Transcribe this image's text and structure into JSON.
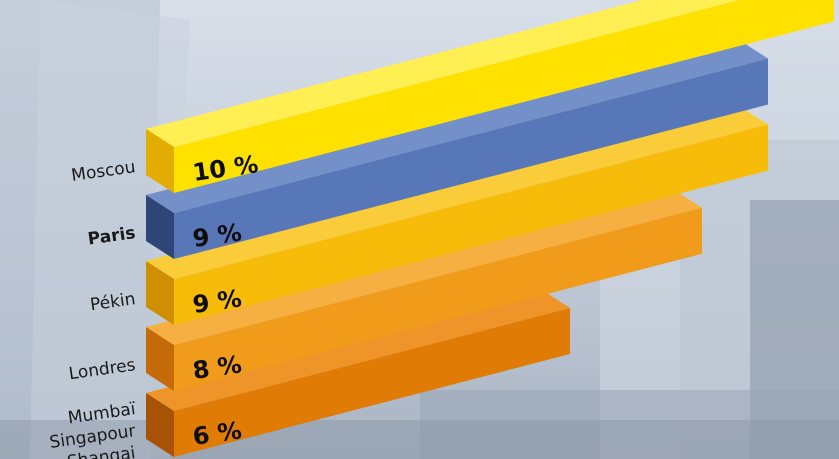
{
  "chart_data": {
    "type": "bar",
    "orientation": "horizontal",
    "categories": [
      "Moscou",
      "Paris",
      "Pékin",
      "Londres",
      "Mumbaï\nSingapour\nShangai"
    ],
    "category_lines": [
      [
        "Moscou"
      ],
      [
        "Paris"
      ],
      [
        "Pékin"
      ],
      [
        "Londres"
      ],
      [
        "Mumbaï",
        "Singapour",
        "Shangai"
      ]
    ],
    "values": [
      10,
      9,
      9,
      8,
      6
    ],
    "value_labels": [
      "10 %",
      "9 %",
      "9 %",
      "8 %",
      "6 %"
    ],
    "bar_colors": [
      {
        "front": "#ffe100",
        "top": "#ffef52",
        "side": "#e2ad00"
      },
      {
        "front": "#5877b8",
        "top": "#7390c9",
        "side": "#2e4577"
      },
      {
        "front": "#f7bc0a",
        "top": "#fbcc3a",
        "side": "#cf8f00"
      },
      {
        "front": "#f09b1a",
        "top": "#f6b041",
        "side": "#c56a08"
      },
      {
        "front": "#e07b05",
        "top": "#ee9428",
        "side": "#a85205"
      }
    ],
    "style": "3d-perspective-bars",
    "background": "photo-of-skyscrapers-faded",
    "bold_category": "Paris",
    "xlabel": "",
    "ylabel": ""
  }
}
